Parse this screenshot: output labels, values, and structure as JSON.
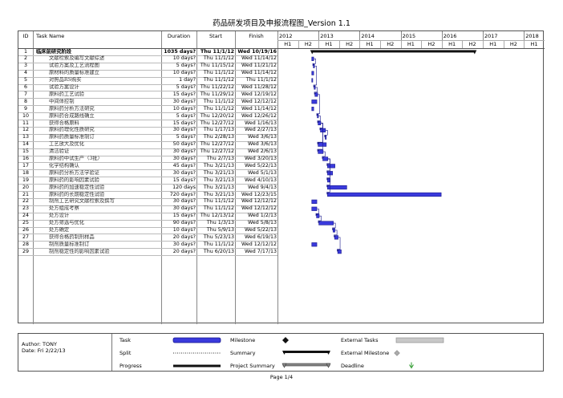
{
  "title": "药品研发项目及申报流程图_Version 1.1",
  "columns": {
    "id": "ID",
    "task_name": "Task Name",
    "duration": "Duration",
    "start": "Start",
    "finish": "Finish"
  },
  "timeline": {
    "years": [
      "2012",
      "2013",
      "2014",
      "2015",
      "2016",
      "2017",
      "2018"
    ],
    "halves": [
      "H1",
      "H2",
      "H1",
      "H2",
      "H1",
      "H2",
      "H1",
      "H2",
      "H1",
      "H2",
      "H1",
      "H2",
      "H1"
    ]
  },
  "tasks": [
    {
      "id": "1",
      "name": "临床前研究阶段",
      "duration": "1035 days?",
      "start": "Thu 11/1/12",
      "finish": "Wed 10/19/16",
      "summary": true
    },
    {
      "id": "2",
      "name": "文献检索及编写文献综述",
      "duration": "10 days?",
      "start": "Thu 11/1/12",
      "finish": "Wed 11/14/12"
    },
    {
      "id": "3",
      "name": "试验方案及工艺流程图",
      "duration": "5 days?",
      "start": "Thu 11/15/12",
      "finish": "Wed 11/21/12"
    },
    {
      "id": "4",
      "name": "原材料的质量标准建立",
      "duration": "10 days?",
      "start": "Thu 11/1/12",
      "finish": "Wed 11/14/12"
    },
    {
      "id": "5",
      "name": "对照品RS购买",
      "duration": "1 day?",
      "start": "Thu 11/1/12",
      "finish": "Thu 11/1/12"
    },
    {
      "id": "6",
      "name": "试验方案设计",
      "duration": "5 days?",
      "start": "Thu 11/22/12",
      "finish": "Wed 11/28/12"
    },
    {
      "id": "7",
      "name": "原料药工艺试验",
      "duration": "15 days?",
      "start": "Thu 11/29/12",
      "finish": "Wed 12/19/12"
    },
    {
      "id": "8",
      "name": "中间体控制",
      "duration": "30 days?",
      "start": "Thu 11/1/12",
      "finish": "Wed 12/12/12"
    },
    {
      "id": "9",
      "name": "原料药分析方法研究",
      "duration": "10 days?",
      "start": "Thu 11/1/12",
      "finish": "Wed 11/14/12"
    },
    {
      "id": "10",
      "name": "原料药合成路线确立",
      "duration": "5 days?",
      "start": "Thu 12/20/12",
      "finish": "Wed 12/26/12"
    },
    {
      "id": "11",
      "name": "获得合格原料",
      "duration": "15 days?",
      "start": "Thu 12/27/12",
      "finish": "Wed 1/16/13"
    },
    {
      "id": "12",
      "name": "原料药理化性质研究",
      "duration": "30 days?",
      "start": "Thu 1/17/13",
      "finish": "Wed 2/27/13"
    },
    {
      "id": "13",
      "name": "原料药质量标准制订",
      "duration": "5 days?",
      "start": "Thu 2/28/13",
      "finish": "Wed 3/6/13"
    },
    {
      "id": "14",
      "name": "工艺放大及优化",
      "duration": "50 days?",
      "start": "Thu 12/27/12",
      "finish": "Wed 3/6/13"
    },
    {
      "id": "15",
      "name": "清洁验证",
      "duration": "30 days?",
      "start": "Thu 12/27/12",
      "finish": "Wed 2/6/13"
    },
    {
      "id": "16",
      "name": "原料药中试生产（3批）",
      "duration": "30 days?",
      "start": "Thu 2/7/13",
      "finish": "Wed 3/20/13"
    },
    {
      "id": "17",
      "name": "化学结构确认",
      "duration": "45 days?",
      "start": "Thu 3/21/13",
      "finish": "Wed 5/22/13"
    },
    {
      "id": "18",
      "name": "原料药分析方法学验证",
      "duration": "30 days?",
      "start": "Thu 3/21/13",
      "finish": "Wed 5/1/13"
    },
    {
      "id": "19",
      "name": "原料药的影响因素试验",
      "duration": "15 days?",
      "start": "Thu 3/21/13",
      "finish": "Wed 4/10/13"
    },
    {
      "id": "20",
      "name": "原料药的加速稳定性试验",
      "duration": "120 days",
      "start": "Thu 3/21/13",
      "finish": "Wed 9/4/13"
    },
    {
      "id": "21",
      "name": "原料药的长期稳定性试验",
      "duration": "720 days?",
      "start": "Thu 3/21/13",
      "finish": "Wed 12/23/15"
    },
    {
      "id": "22",
      "name": "制剂工艺研究文献检索及撰写",
      "duration": "30 days?",
      "start": "Thu 11/1/12",
      "finish": "Wed 12/12/12"
    },
    {
      "id": "23",
      "name": "处方组成考察",
      "duration": "30 days?",
      "start": "Thu 11/1/12",
      "finish": "Wed 12/12/12"
    },
    {
      "id": "24",
      "name": "处方设计",
      "duration": "15 days?",
      "start": "Thu 12/13/12",
      "finish": "Wed 1/2/13"
    },
    {
      "id": "25",
      "name": "处方筛选与优化",
      "duration": "90 days?",
      "start": "Thu 1/3/13",
      "finish": "Wed 5/8/13"
    },
    {
      "id": "26",
      "name": "处方确定",
      "duration": "10 days?",
      "start": "Thu 5/9/13",
      "finish": "Wed 5/22/13"
    },
    {
      "id": "27",
      "name": "获得合格药制剂样品",
      "duration": "20 days?",
      "start": "Thu 5/23/13",
      "finish": "Wed 6/19/13"
    },
    {
      "id": "28",
      "name": "制剂质量标准制订",
      "duration": "30 days?",
      "start": "Thu 11/1/12",
      "finish": "Wed 12/12/12"
    },
    {
      "id": "29",
      "name": "制剂稳定性的影响因素试验",
      "duration": "20 days?",
      "start": "Thu 6/20/13",
      "finish": "Wed 7/17/13"
    }
  ],
  "footer": {
    "author": "Author: TONY",
    "date": "Date: Fri 2/22/13",
    "legend": {
      "task": "Task",
      "split": "Split",
      "progress": "Progress",
      "milestone": "Milestone",
      "summary": "Summary",
      "project_summary": "Project Summary",
      "external_tasks": "External Tasks",
      "external_milestone": "External Milestone",
      "deadline": "Deadline"
    },
    "colors": {
      "task_bar": "#3a3adc",
      "task_border": "#1a1a8c",
      "summary_bar": "#111111",
      "deadline": "#2e9a2e"
    }
  },
  "page": "Page 1/4"
}
